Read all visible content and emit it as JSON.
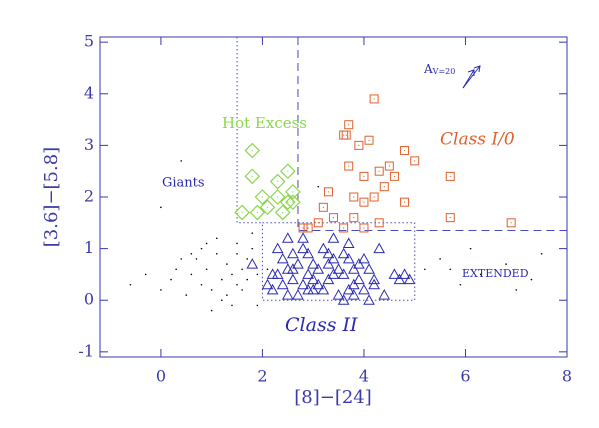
{
  "chart_data": {
    "type": "scatter",
    "xlabel": "[8]−[24]",
    "ylabel": "[3.6]−[5.8]",
    "xlim": [
      -1.2,
      8
    ],
    "ylim": [
      -1.1,
      5.1
    ],
    "xticks": [
      0,
      2,
      4,
      6,
      8
    ],
    "yticks": [
      -1,
      0,
      1,
      2,
      3,
      4,
      5
    ],
    "series": [
      {
        "name": "Giants",
        "marker": "dot",
        "color": "#000000",
        "x": [
          -0.6,
          -0.3,
          0.0,
          0.2,
          0.3,
          0.5,
          0.6,
          0.7,
          0.8,
          0.9,
          1.0,
          1.1,
          1.2,
          1.3,
          1.3,
          1.4,
          1.5,
          1.5,
          1.6,
          1.6,
          1.7,
          1.7,
          1.8,
          1.9,
          0.4,
          0.9,
          1.2,
          1.4,
          1.0,
          0.6,
          0.8,
          1.1,
          1.5,
          1.8,
          2.1,
          5.2,
          5.5,
          5.9,
          6.3,
          6.8,
          7.0,
          7.3,
          7.5,
          6.1,
          5.7,
          0.0,
          0.4,
          1.9,
          3.1
        ],
        "values": [
          0.3,
          0.5,
          0.2,
          0.4,
          0.6,
          0.1,
          0.5,
          0.8,
          0.3,
          0.6,
          0.2,
          0.9,
          0.4,
          0.7,
          0.1,
          0.5,
          0.3,
          0.9,
          0.6,
          0.2,
          0.8,
          0.4,
          1.0,
          0.5,
          2.7,
          1.1,
          0.0,
          -0.1,
          -0.2,
          0.9,
          1.0,
          1.2,
          1.1,
          1.3,
          0.6,
          0.6,
          0.8,
          0.3,
          0.5,
          0.7,
          0.2,
          0.4,
          0.9,
          1.0,
          0.6,
          1.8,
          0.8,
          -0.1,
          2.2
        ]
      },
      {
        "name": "Class II",
        "marker": "triangle",
        "color": "#2a2ab0",
        "x": [
          2.2,
          2.3,
          2.4,
          2.5,
          2.6,
          2.7,
          2.8,
          2.9,
          3.0,
          3.1,
          3.2,
          3.3,
          3.4,
          3.5,
          3.6,
          3.7,
          3.8,
          3.9,
          4.0,
          4.1,
          4.2,
          4.3,
          4.4,
          4.6,
          4.7,
          4.8,
          4.9,
          2.3,
          2.5,
          2.7,
          2.9,
          3.1,
          3.3,
          3.5,
          3.7,
          3.9,
          4.1,
          2.4,
          2.6,
          2.8,
          3.0,
          3.2,
          3.4,
          3.6,
          3.8,
          4.0,
          2.2,
          2.6,
          3.0,
          3.4,
          3.8,
          2.1,
          2.5,
          2.9,
          3.3,
          3.7,
          4.2,
          1.8,
          2.8,
          3.6
        ],
        "values": [
          0.2,
          0.5,
          0.8,
          0.1,
          0.4,
          0.7,
          0.3,
          0.9,
          0.2,
          0.6,
          1.0,
          0.4,
          0.8,
          0.1,
          0.5,
          1.1,
          0.3,
          0.7,
          0.2,
          0.6,
          0.4,
          1.0,
          0.1,
          0.5,
          0.4,
          0.5,
          0.4,
          1.0,
          1.2,
          0.1,
          0.5,
          0.3,
          0.9,
          0.6,
          0.2,
          0.4,
          0.0,
          0.3,
          0.6,
          1.0,
          0.7,
          0.2,
          0.5,
          0.9,
          0.6,
          0.8,
          0.5,
          0.9,
          0.4,
          1.2,
          0.1,
          0.3,
          0.6,
          0.2,
          0.7,
          0.8,
          0.3,
          0.7,
          1.2,
          0.0
        ]
      },
      {
        "name": "Class I/0",
        "marker": "square",
        "color": "#e0602c",
        "x": [
          4.2,
          3.7,
          3.6,
          3.65,
          4.1,
          3.9,
          4.8,
          5.0,
          4.5,
          3.7,
          4.3,
          4.0,
          4.6,
          4.4,
          4.2,
          3.8,
          4.0,
          4.8,
          3.3,
          3.2,
          3.4,
          3.8,
          3.1,
          5.7,
          5.7,
          6.9,
          3.6,
          4.0,
          2.9,
          2.8,
          4.3
        ],
        "values": [
          3.9,
          3.4,
          3.2,
          3.2,
          3.1,
          3.0,
          2.9,
          2.7,
          2.6,
          2.6,
          2.5,
          2.4,
          2.4,
          2.2,
          2.0,
          2.0,
          1.9,
          1.9,
          2.1,
          1.8,
          1.6,
          1.6,
          1.5,
          2.4,
          1.6,
          1.5,
          1.4,
          1.4,
          1.4,
          1.4,
          1.5
        ]
      },
      {
        "name": "Hot Excess",
        "marker": "diamond",
        "color": "#8ad84a",
        "x": [
          1.8,
          1.8,
          2.3,
          2.5,
          2.6,
          2.3,
          2.0,
          2.5,
          2.1,
          2.4,
          1.9,
          1.6,
          2.6
        ],
        "values": [
          2.9,
          2.4,
          2.3,
          2.5,
          2.1,
          2.0,
          2.0,
          1.9,
          1.8,
          1.7,
          1.7,
          1.7,
          1.9
        ]
      }
    ],
    "lines": [
      {
        "style": "dashed",
        "x": [
          2.7,
          2.7,
          8
        ],
        "y": [
          5.1,
          1.35,
          1.35
        ]
      },
      {
        "style": "dotted",
        "x": [
          1.5,
          1.5,
          2.0
        ],
        "y": [
          5.1,
          1.5,
          1.5
        ]
      },
      {
        "style": "dotted",
        "x": [
          2,
          5,
          5,
          2,
          2
        ],
        "y": [
          1.5,
          1.5,
          0,
          0,
          1.5
        ]
      }
    ],
    "annotations": [
      {
        "text": "EXTENDED"
      },
      {
        "text": "A",
        "subscript": "V=20"
      }
    ]
  }
}
